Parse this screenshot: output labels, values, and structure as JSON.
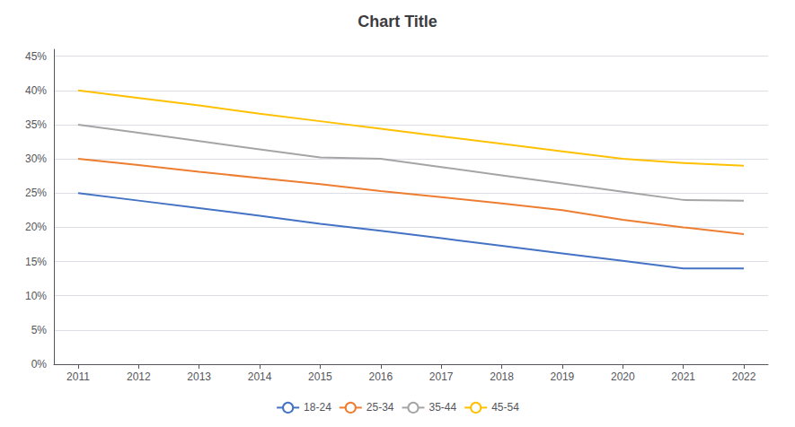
{
  "chart_data": {
    "type": "line",
    "title": "Chart Title",
    "x": [
      2011,
      2012,
      2013,
      2014,
      2015,
      2016,
      2017,
      2018,
      2019,
      2020,
      2021,
      2022
    ],
    "series": [
      {
        "name": "18-24",
        "color": "#4472C4",
        "values": [
          0.25,
          0.239,
          0.228,
          0.217,
          0.205,
          0.195,
          0.184,
          0.173,
          0.162,
          0.151,
          0.14,
          0.14
        ]
      },
      {
        "name": "25-34",
        "color": "#ED7D31",
        "values": [
          0.3,
          0.291,
          0.281,
          0.272,
          0.263,
          0.253,
          0.244,
          0.235,
          0.225,
          0.211,
          0.2,
          0.19
        ]
      },
      {
        "name": "35-44",
        "color": "#A5A5A5",
        "values": [
          0.35,
          0.338,
          0.326,
          0.314,
          0.302,
          0.3,
          0.288,
          0.276,
          0.264,
          0.252,
          0.24,
          0.239
        ]
      },
      {
        "name": "45-54",
        "color": "#FFC000",
        "values": [
          0.4,
          0.389,
          0.378,
          0.366,
          0.355,
          0.344,
          0.333,
          0.322,
          0.311,
          0.3,
          0.294,
          0.29
        ]
      }
    ],
    "xlim": [
      2010.6,
      2022.4
    ],
    "xticks": [
      2011,
      2012,
      2013,
      2014,
      2015,
      2016,
      2017,
      2018,
      2019,
      2020,
      2021,
      2022
    ],
    "ylim": [
      0,
      0.46
    ],
    "yticks": [
      {
        "value": 0.0,
        "label": "0%"
      },
      {
        "value": 0.05,
        "label": "5%"
      },
      {
        "value": 0.1,
        "label": "10%"
      },
      {
        "value": 0.15,
        "label": "15%"
      },
      {
        "value": 0.2,
        "label": "20%"
      },
      {
        "value": 0.25,
        "label": "25%"
      },
      {
        "value": 0.3,
        "label": "30%"
      },
      {
        "value": 0.35,
        "label": "35%"
      },
      {
        "value": 0.4,
        "label": "40%"
      },
      {
        "value": 0.45,
        "label": "45%"
      }
    ],
    "grid": true,
    "legend": "bottom"
  }
}
